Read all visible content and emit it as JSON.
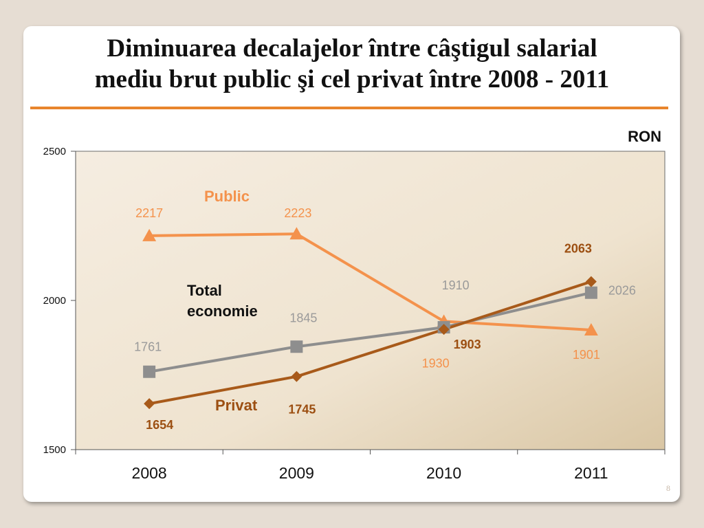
{
  "slide": {
    "title_line1": "Diminuarea decalajelor între câştigul salarial",
    "title_line2": "mediu brut public şi cel privat între 2008 - 2011",
    "unit": "RON",
    "page_number": "8"
  },
  "chart_data": {
    "type": "line",
    "title": "Diminuarea decalajelor între câştigul salarial mediu brut public şi cel privat între 2008 - 2011",
    "ylabel": "RON",
    "xlabel": "",
    "categories": [
      "2008",
      "2009",
      "2010",
      "2011"
    ],
    "ylim": [
      1500,
      2500
    ],
    "yticks": [
      1500,
      2000,
      2500
    ],
    "grid": false,
    "series": [
      {
        "key": "public",
        "name": "Public",
        "values": [
          2217,
          2223,
          1930,
          1901
        ],
        "color": "#f4924c",
        "marker": "triangle",
        "label_color": "#f4924c"
      },
      {
        "key": "total",
        "name": "Total economie",
        "values": [
          1761,
          1845,
          1910,
          2026
        ],
        "color": "#8e8e8e",
        "marker": "square",
        "label_color": "#9a9a9a"
      },
      {
        "key": "privat",
        "name": "Privat",
        "values": [
          1654,
          1745,
          1903,
          2063
        ],
        "color": "#a85a1a",
        "marker": "diamond",
        "label_color": "#9c4f12"
      }
    ],
    "series_labels": [
      {
        "key": "public",
        "text": "Public",
        "color": "#f4924c"
      },
      {
        "key": "total",
        "text_lines": [
          "Total",
          "economie"
        ],
        "color": "#111111"
      },
      {
        "key": "privat",
        "text": "Privat",
        "color": "#9c4f12"
      }
    ]
  }
}
